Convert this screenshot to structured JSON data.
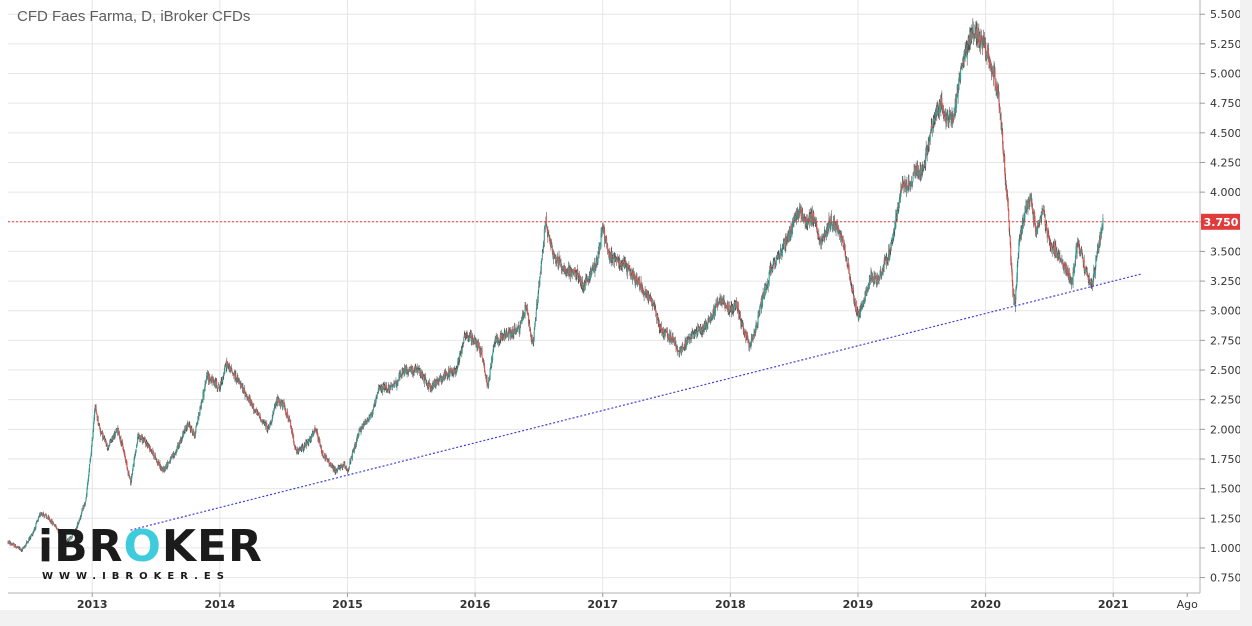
{
  "chart_data": {
    "type": "candlestick",
    "title": "CFD Faes Farma, D, iBroker CFDs",
    "y_ticks": [
      "0.750",
      "1.000",
      "1.250",
      "1.500",
      "1.750",
      "2.000",
      "2.250",
      "2.500",
      "2.750",
      "3.000",
      "3.250",
      "3.500",
      "3.750",
      "4.000",
      "4.250",
      "4.500",
      "4.750",
      "5.000",
      "5.250",
      "5.500"
    ],
    "ylim": [
      0.62,
      5.62
    ],
    "x_ticks": [
      "2013",
      "2014",
      "2015",
      "2016",
      "2017",
      "2018",
      "2019",
      "2020",
      "2021",
      "Ago"
    ],
    "x_tick_years": [
      2013,
      2014,
      2015,
      2016,
      2017,
      2018,
      2019,
      2020,
      2021,
      2021.58
    ],
    "xlim": [
      2012.34,
      2021.68
    ],
    "last_price": "3.750",
    "horizontal_line": 3.75,
    "trendline": {
      "start": [
        2013.3,
        1.15
      ],
      "end": [
        2021.22,
        3.31
      ]
    },
    "price_path": [
      [
        2012.34,
        1.05
      ],
      [
        2012.45,
        0.98
      ],
      [
        2012.53,
        1.12
      ],
      [
        2012.6,
        1.3
      ],
      [
        2012.7,
        1.2
      ],
      [
        2012.8,
        1.05
      ],
      [
        2012.87,
        1.15
      ],
      [
        2012.95,
        1.4
      ],
      [
        2013.0,
        1.9
      ],
      [
        2013.02,
        2.2
      ],
      [
        2013.06,
        2.0
      ],
      [
        2013.12,
        1.85
      ],
      [
        2013.2,
        2.0
      ],
      [
        2013.25,
        1.8
      ],
      [
        2013.3,
        1.55
      ],
      [
        2013.36,
        1.95
      ],
      [
        2013.45,
        1.85
      ],
      [
        2013.55,
        1.65
      ],
      [
        2013.65,
        1.8
      ],
      [
        2013.75,
        2.05
      ],
      [
        2013.8,
        1.95
      ],
      [
        2013.9,
        2.45
      ],
      [
        2014.0,
        2.35
      ],
      [
        2014.05,
        2.55
      ],
      [
        2014.12,
        2.45
      ],
      [
        2014.2,
        2.3
      ],
      [
        2014.28,
        2.15
      ],
      [
        2014.38,
        2.0
      ],
      [
        2014.45,
        2.25
      ],
      [
        2014.5,
        2.2
      ],
      [
        2014.55,
        2.05
      ],
      [
        2014.6,
        1.8
      ],
      [
        2014.7,
        1.9
      ],
      [
        2014.75,
        2.0
      ],
      [
        2014.8,
        1.8
      ],
      [
        2014.9,
        1.65
      ],
      [
        2014.98,
        1.7
      ],
      [
        2015.0,
        1.65
      ],
      [
        2015.1,
        2.0
      ],
      [
        2015.2,
        2.15
      ],
      [
        2015.25,
        2.35
      ],
      [
        2015.35,
        2.35
      ],
      [
        2015.45,
        2.5
      ],
      [
        2015.55,
        2.5
      ],
      [
        2015.65,
        2.35
      ],
      [
        2015.75,
        2.45
      ],
      [
        2015.85,
        2.5
      ],
      [
        2015.92,
        2.8
      ],
      [
        2016.0,
        2.75
      ],
      [
        2016.05,
        2.65
      ],
      [
        2016.1,
        2.35
      ],
      [
        2016.15,
        2.75
      ],
      [
        2016.25,
        2.8
      ],
      [
        2016.35,
        2.85
      ],
      [
        2016.4,
        3.05
      ],
      [
        2016.45,
        2.7
      ],
      [
        2016.5,
        3.2
      ],
      [
        2016.55,
        3.75
      ],
      [
        2016.62,
        3.45
      ],
      [
        2016.7,
        3.35
      ],
      [
        2016.8,
        3.3
      ],
      [
        2016.85,
        3.2
      ],
      [
        2016.95,
        3.4
      ],
      [
        2017.0,
        3.7
      ],
      [
        2017.05,
        3.45
      ],
      [
        2017.1,
        3.45
      ],
      [
        2017.2,
        3.35
      ],
      [
        2017.3,
        3.2
      ],
      [
        2017.4,
        3.05
      ],
      [
        2017.45,
        2.85
      ],
      [
        2017.55,
        2.75
      ],
      [
        2017.6,
        2.65
      ],
      [
        2017.7,
        2.8
      ],
      [
        2017.78,
        2.85
      ],
      [
        2017.85,
        2.95
      ],
      [
        2017.92,
        3.1
      ],
      [
        2018.0,
        3.0
      ],
      [
        2018.05,
        3.05
      ],
      [
        2018.1,
        2.85
      ],
      [
        2018.15,
        2.7
      ],
      [
        2018.2,
        2.85
      ],
      [
        2018.25,
        3.1
      ],
      [
        2018.32,
        3.35
      ],
      [
        2018.4,
        3.5
      ],
      [
        2018.47,
        3.65
      ],
      [
        2018.53,
        3.85
      ],
      [
        2018.6,
        3.75
      ],
      [
        2018.65,
        3.8
      ],
      [
        2018.7,
        3.55
      ],
      [
        2018.78,
        3.75
      ],
      [
        2018.85,
        3.7
      ],
      [
        2018.9,
        3.5
      ],
      [
        2018.95,
        3.2
      ],
      [
        2019.0,
        2.95
      ],
      [
        2019.05,
        3.1
      ],
      [
        2019.1,
        3.3
      ],
      [
        2019.15,
        3.25
      ],
      [
        2019.25,
        3.5
      ],
      [
        2019.3,
        3.8
      ],
      [
        2019.35,
        4.05
      ],
      [
        2019.4,
        4.05
      ],
      [
        2019.45,
        4.2
      ],
      [
        2019.5,
        4.15
      ],
      [
        2019.55,
        4.4
      ],
      [
        2019.6,
        4.65
      ],
      [
        2019.65,
        4.75
      ],
      [
        2019.7,
        4.6
      ],
      [
        2019.75,
        4.6
      ],
      [
        2019.8,
        5.0
      ],
      [
        2019.85,
        5.2
      ],
      [
        2019.9,
        5.35
      ],
      [
        2019.95,
        5.3
      ],
      [
        2020.0,
        5.2
      ],
      [
        2020.05,
        5.05
      ],
      [
        2020.1,
        4.85
      ],
      [
        2020.14,
        4.35
      ],
      [
        2020.18,
        3.8
      ],
      [
        2020.21,
        3.2
      ],
      [
        2020.23,
        3.05
      ],
      [
        2020.26,
        3.55
      ],
      [
        2020.3,
        3.8
      ],
      [
        2020.35,
        3.95
      ],
      [
        2020.4,
        3.65
      ],
      [
        2020.45,
        3.85
      ],
      [
        2020.5,
        3.55
      ],
      [
        2020.55,
        3.5
      ],
      [
        2020.62,
        3.35
      ],
      [
        2020.68,
        3.25
      ],
      [
        2020.72,
        3.6
      ],
      [
        2020.78,
        3.35
      ],
      [
        2020.83,
        3.2
      ],
      [
        2020.87,
        3.45
      ],
      [
        2020.92,
        3.75
      ]
    ]
  }
}
